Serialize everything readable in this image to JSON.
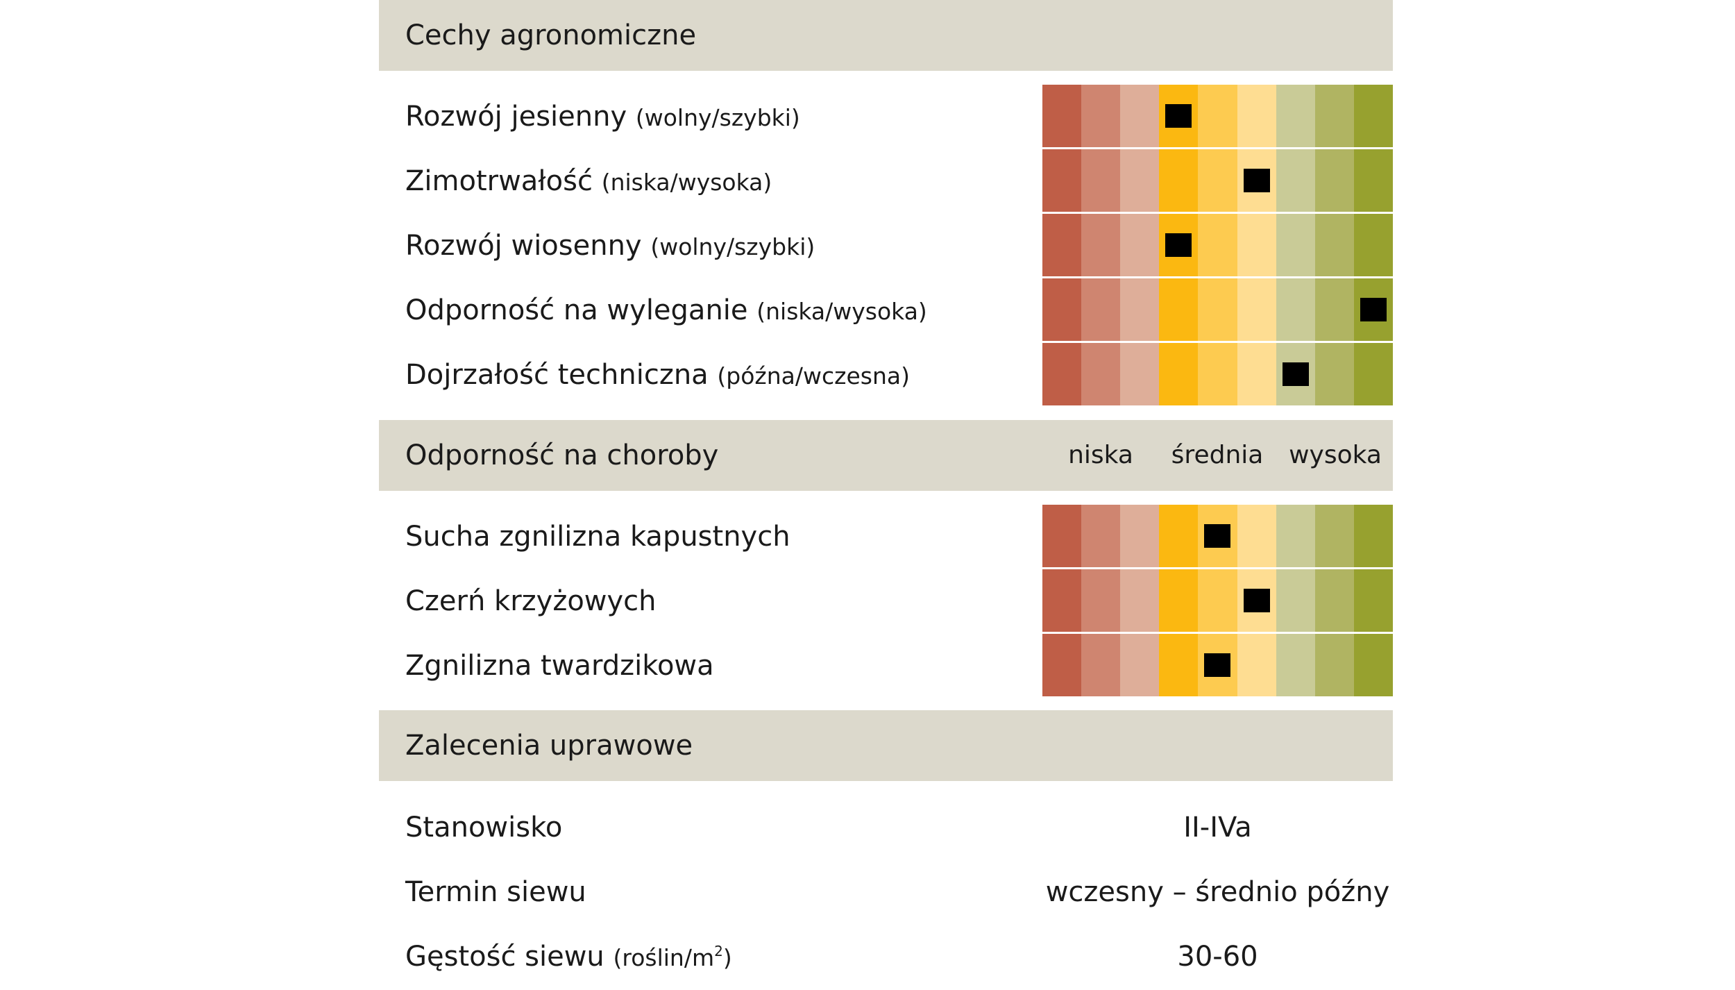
{
  "scale_colors": [
    "#bf5e47",
    "#cf8570",
    "#deae99",
    "#fbb811",
    "#fdcb50",
    "#fedd92",
    "#c9cb97",
    "#b0b462",
    "#97a12f"
  ],
  "agronomic": {
    "title": "Cechy agronomiczne",
    "rows": [
      {
        "label": "Rozwój jesienny",
        "note": "(wolny/szybki)",
        "level": 4
      },
      {
        "label": "Zimotrwałość",
        "note": "(niska/wysoka)",
        "level": 6
      },
      {
        "label": "Rozwój wiosenny",
        "note": "(wolny/szybki)",
        "level": 4
      },
      {
        "label": "Odporność na wyleganie",
        "note": "(niska/wysoka)",
        "level": 9
      },
      {
        "label": "Dojrzałość techniczna",
        "note": "(późna/wczesna)",
        "level": 7
      }
    ]
  },
  "disease": {
    "title": "Odporność na choroby",
    "legend": [
      "niska",
      "średnia",
      "wysoka"
    ],
    "rows": [
      {
        "label": "Sucha zgnilizna kapustnych",
        "level": 5
      },
      {
        "label": "Czerń krzyżowych",
        "level": 6
      },
      {
        "label": "Zgnilizna twardzikowa",
        "level": 5
      }
    ]
  },
  "cultivation": {
    "title": "Zalecenia uprawowe",
    "rows": [
      {
        "label": "Stanowisko",
        "note": "",
        "value": "II-IVa"
      },
      {
        "label": "Termin siewu",
        "note": "",
        "value": "wczesny – średnio późny"
      },
      {
        "label": "Gęstość siewu",
        "note": "(roślin/m",
        "note_sup": "2",
        "note_end": ")",
        "value": "30-60"
      }
    ]
  }
}
